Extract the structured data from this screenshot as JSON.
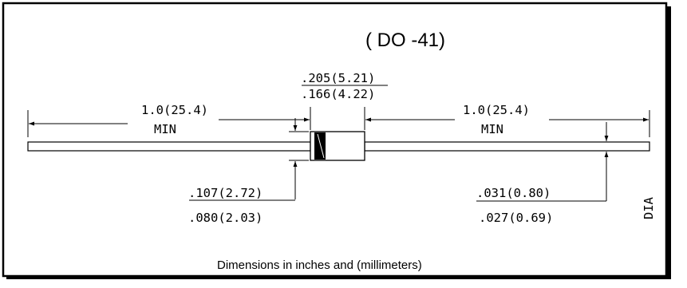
{
  "title": "( DO -41)",
  "body_dims": {
    "top": ".205(5.21)",
    "bottom": ".166(4.22)"
  },
  "lead_left": {
    "line1": "1.0(25.4)",
    "line2": "MIN"
  },
  "lead_right": {
    "line1": "1.0(25.4)",
    "line2": "MIN"
  },
  "body_dia": {
    "max": ".107(2.72)",
    "min": ".080(2.03)"
  },
  "lead_dia": {
    "max": ".031(0.80)",
    "min": ".027(0.69)",
    "label": "DIA"
  },
  "footer": "Dimensions in inches and (millimeters)"
}
